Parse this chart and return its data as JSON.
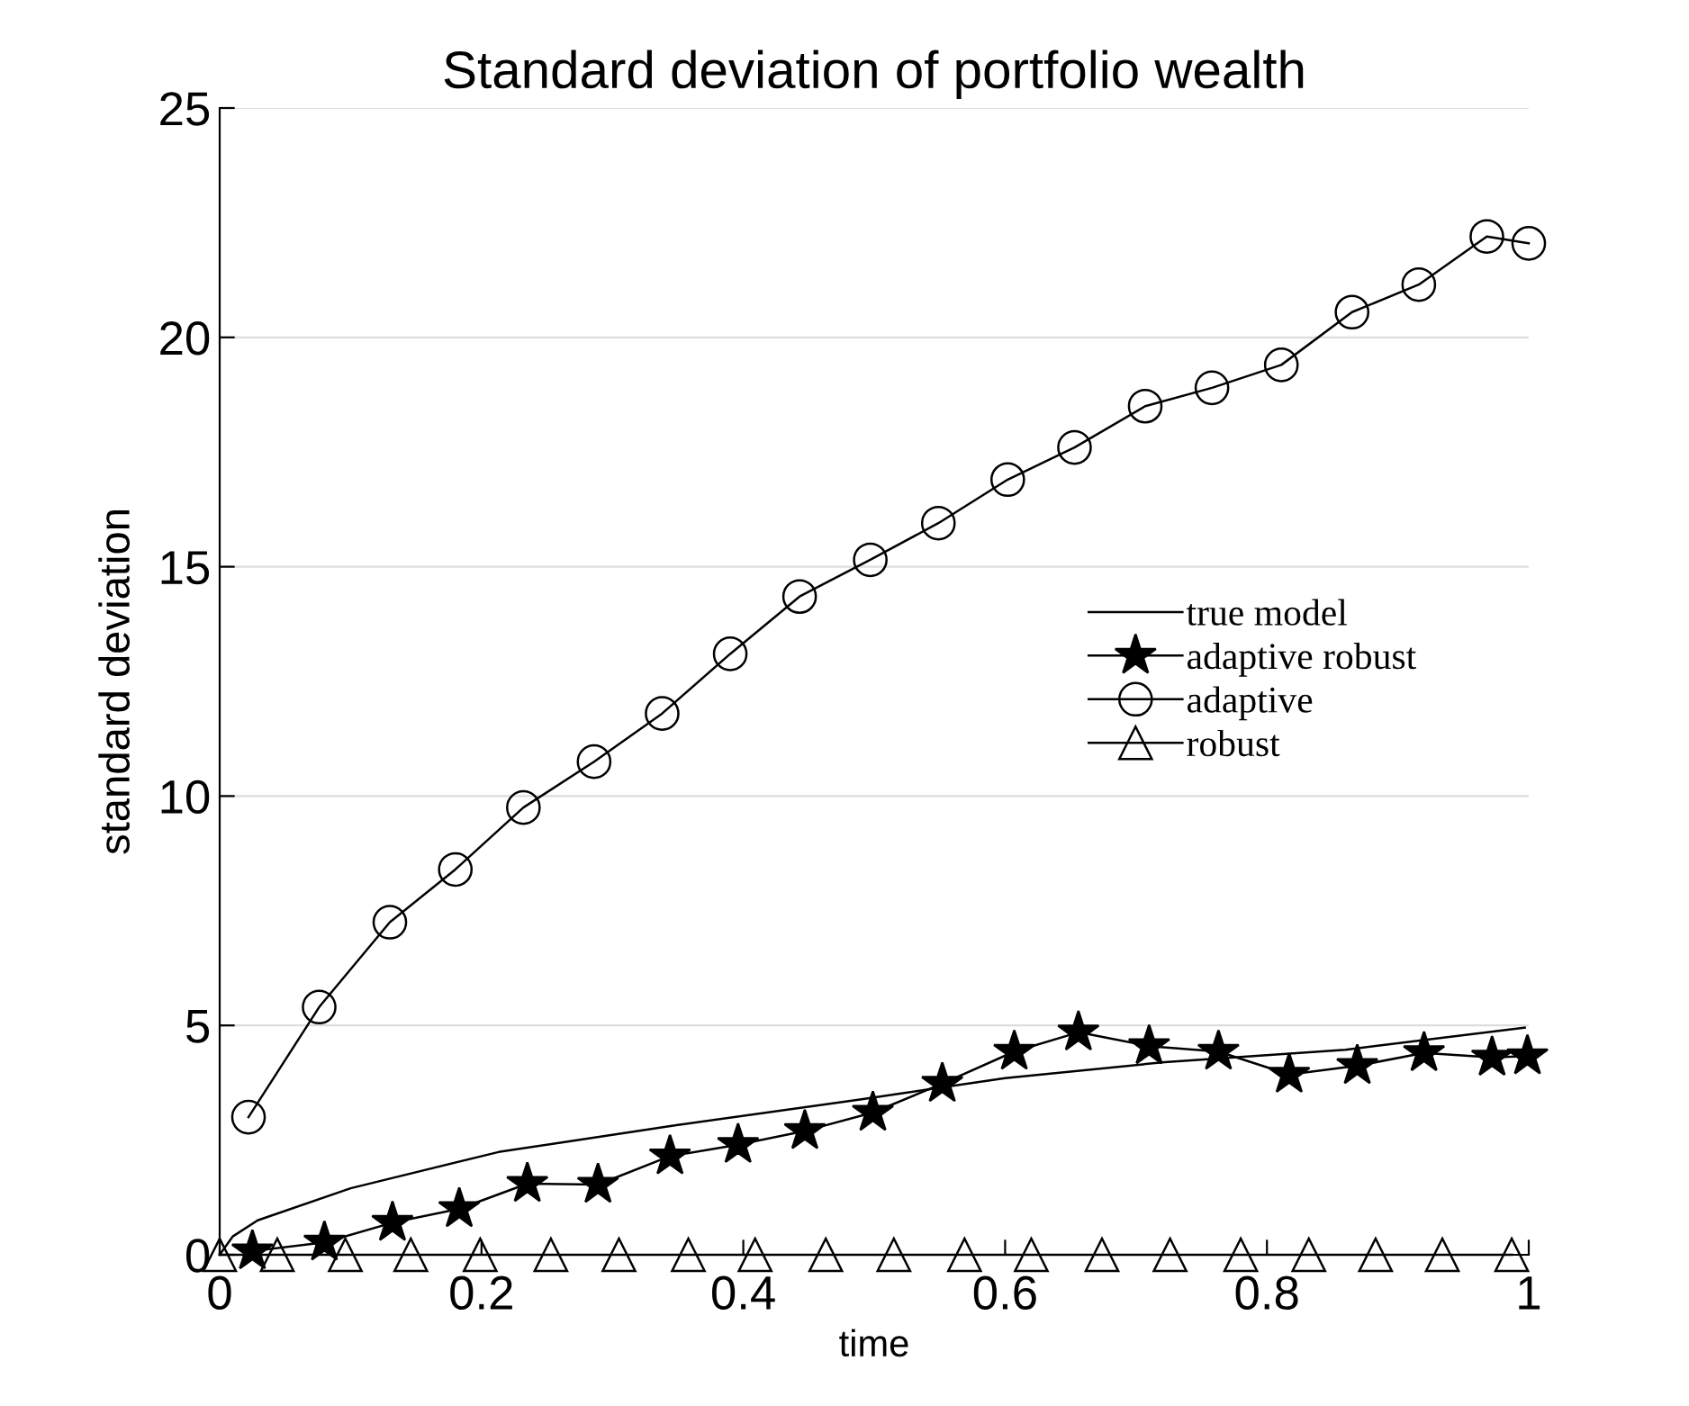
{
  "chart_data": {
    "type": "line",
    "title": "Standard deviation of portfolio wealth",
    "xlabel": "time",
    "ylabel": "standard deviation",
    "xlim": [
      0,
      1
    ],
    "ylim": [
      0,
      25
    ],
    "xticks": [
      0,
      0.2,
      0.4,
      0.6,
      0.8,
      1
    ],
    "yticks": [
      0,
      5,
      10,
      15,
      20,
      25
    ],
    "grid": "y",
    "legend": "right",
    "series": [
      {
        "name": "true model",
        "color": "#000000",
        "marker": "none",
        "x": [
          0,
          0.01,
          0.029,
          0.1,
          0.213,
          0.35,
          0.488,
          0.6,
          0.722,
          0.86,
          0.997
        ],
        "values": [
          0,
          0.4,
          0.75,
          1.45,
          2.24,
          2.83,
          3.38,
          3.85,
          4.2,
          4.47,
          4.95
        ]
      },
      {
        "name": "adaptive robust",
        "color": "#000000",
        "marker": "star",
        "x": [
          0.025,
          0.08,
          0.132,
          0.183,
          0.235,
          0.289,
          0.344,
          0.396,
          0.447,
          0.499,
          0.552,
          0.607,
          0.656,
          0.71,
          0.763,
          0.817,
          0.869,
          0.92,
          0.972,
          0.999
        ],
        "values": [
          0.08,
          0.27,
          0.7,
          1.0,
          1.55,
          1.53,
          2.15,
          2.4,
          2.7,
          3.1,
          3.73,
          4.43,
          4.85,
          4.55,
          4.43,
          3.93,
          4.12,
          4.4,
          4.3,
          4.33
        ]
      },
      {
        "name": "adaptive",
        "color": "#000000",
        "marker": "circle",
        "x": [
          0.022,
          0.076,
          0.13,
          0.18,
          0.232,
          0.286,
          0.338,
          0.39,
          0.443,
          0.497,
          0.549,
          0.602,
          0.653,
          0.707,
          0.758,
          0.811,
          0.865,
          0.916,
          0.968,
          1.0
        ],
        "values": [
          3.0,
          5.4,
          7.25,
          8.4,
          9.75,
          10.75,
          11.8,
          13.1,
          14.35,
          15.15,
          15.95,
          16.9,
          17.6,
          18.5,
          18.9,
          19.4,
          20.55,
          21.15,
          22.2,
          22.05
        ]
      },
      {
        "name": "robust",
        "color": "#000000",
        "marker": "triangle",
        "x": [
          0.0,
          0.044,
          0.096,
          0.146,
          0.199,
          0.253,
          0.305,
          0.358,
          0.409,
          0.463,
          0.515,
          0.569,
          0.62,
          0.674,
          0.726,
          0.78,
          0.832,
          0.883,
          0.934,
          0.987
        ],
        "values": [
          0,
          0,
          0,
          0,
          0,
          0,
          0,
          0,
          0,
          0,
          0,
          0,
          0,
          0,
          0,
          0,
          0,
          0,
          0,
          0
        ]
      }
    ]
  }
}
